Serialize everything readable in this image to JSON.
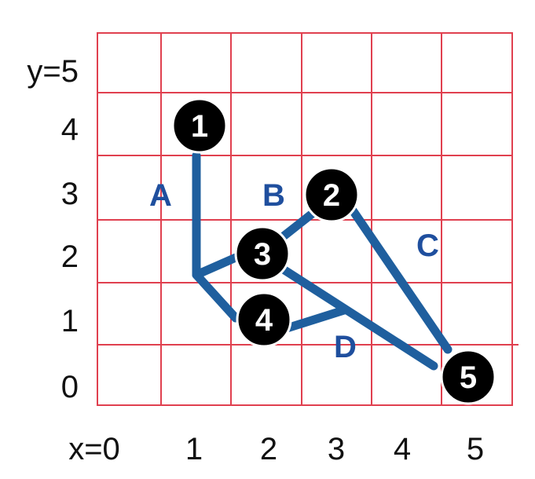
{
  "y_axis": {
    "ticks": [
      "y=5",
      "4",
      "3",
      "2",
      "1",
      "0"
    ]
  },
  "x_axis": {
    "ticks": [
      "x=0",
      "1",
      "2",
      "3",
      "4",
      "5"
    ]
  },
  "colors": {
    "grid": "#e0404f",
    "lines": "#1f5f9e",
    "labels": "#1f4f9e",
    "nodes": "#000000",
    "node_text": "#ffffff"
  },
  "nodes": [
    {
      "label": "1"
    },
    {
      "label": "2"
    },
    {
      "label": "3"
    },
    {
      "label": "4"
    },
    {
      "label": "5"
    }
  ],
  "line_labels": [
    {
      "label": "A"
    },
    {
      "label": "B"
    },
    {
      "label": "C"
    },
    {
      "label": "D"
    }
  ]
}
